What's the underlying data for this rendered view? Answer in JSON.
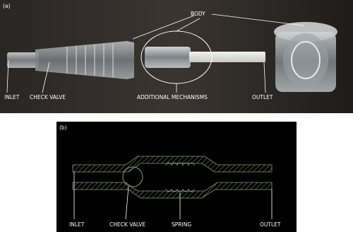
{
  "panel_a": {
    "label": "(a)",
    "labels": {
      "body": "BODY",
      "inlet": "INLET",
      "check_valve": "CHECK VALVE",
      "additional_mechanisms": "ADDITIONAL MECHANISMS",
      "outlet": "OUTLET"
    }
  },
  "panel_b": {
    "label": "(b)",
    "labels": {
      "inlet": "INLET",
      "check_valve": "CHECK VALVE",
      "spring": "SPRING",
      "outlet": "OUTLET"
    }
  }
}
